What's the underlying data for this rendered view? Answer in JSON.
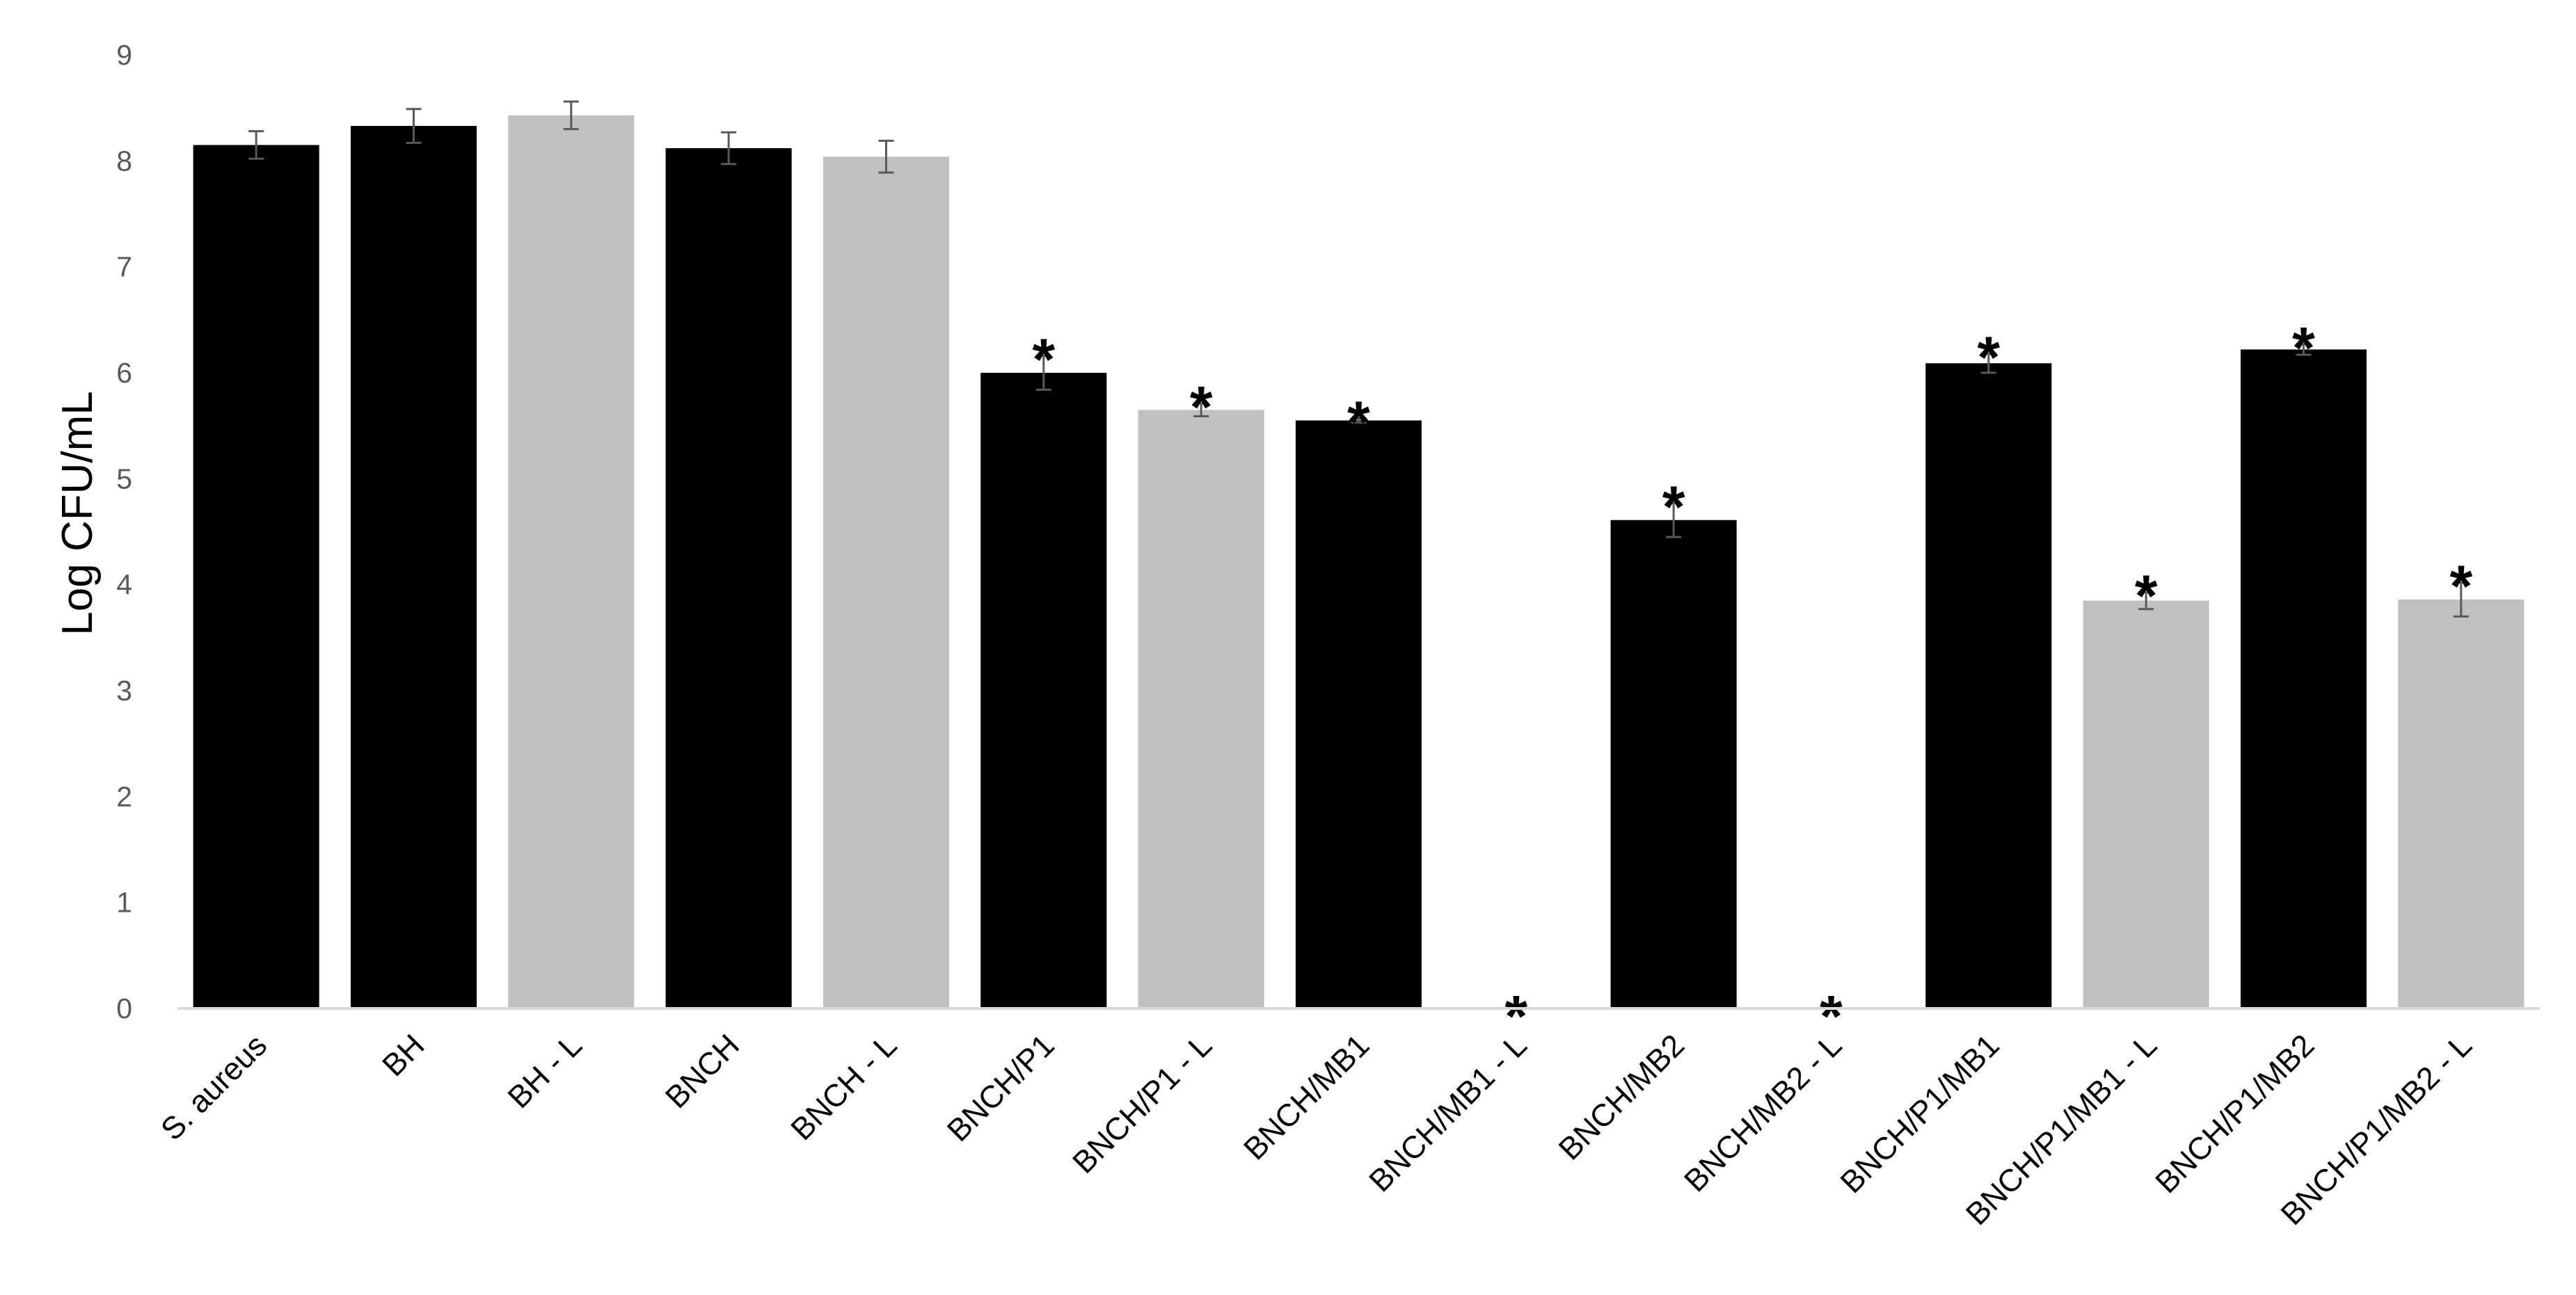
{
  "chart_data": {
    "type": "bar",
    "title": "",
    "xlabel": "",
    "ylabel": "Log CFU/mL",
    "ylim": [
      0,
      9
    ],
    "yticks": [
      0,
      1,
      2,
      3,
      4,
      5,
      6,
      7,
      8,
      9
    ],
    "grid": false,
    "legend": "none",
    "categories": [
      "S. aureus",
      "BH",
      "BH - L",
      "BNCH",
      "BNCH - L",
      "BNCH/P1",
      "BNCH/P1 - L",
      "BNCH/MB1",
      "BNCH/MB1 - L",
      "BNCH/MB2",
      "BNCH/MB2 - L",
      "BNCH/P1/MB1",
      "BNCH/P1/MB1 - L",
      "BNCH/P1/MB2",
      "BNCH/P1/MB2 - L"
    ],
    "values": [
      8.15,
      8.33,
      8.43,
      8.12,
      8.04,
      6.0,
      5.65,
      5.55,
      0,
      4.61,
      0,
      6.09,
      3.85,
      6.22,
      3.86
    ],
    "errors": [
      0.13,
      0.16,
      0.13,
      0.15,
      0.15,
      0.16,
      0.06,
      0.02,
      0,
      0.16,
      0,
      0.09,
      0.08,
      0.05,
      0.16
    ],
    "bar_colors": [
      "#000000",
      "#000000",
      "#c0c0c0",
      "#000000",
      "#c0c0c0",
      "#000000",
      "#c0c0c0",
      "#000000",
      "#c0c0c0",
      "#000000",
      "#c0c0c0",
      "#000000",
      "#c0c0c0",
      "#000000",
      "#c0c0c0"
    ],
    "significant": [
      false,
      false,
      false,
      false,
      false,
      true,
      true,
      true,
      true,
      true,
      true,
      true,
      true,
      true,
      true
    ],
    "significance_marker": "*"
  }
}
